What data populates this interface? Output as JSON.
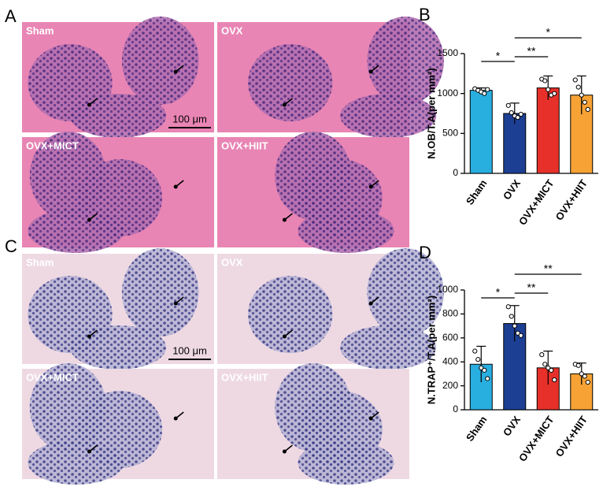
{
  "panels": {
    "A": {
      "label": "A",
      "images": [
        "Sham",
        "OVX",
        "OVX+MICT",
        "OVX+HIIT"
      ],
      "scale_bar": "100 μm"
    },
    "B": {
      "label": "B"
    },
    "C": {
      "label": "C",
      "images": [
        "Sham",
        "OVX",
        "OVX+MICT",
        "OVX+HIIT"
      ],
      "scale_bar": "100 μm"
    },
    "D": {
      "label": "D"
    }
  },
  "chart_data": [
    {
      "type": "bar",
      "ylabel": "N.OB/T.A(per mm²)",
      "categories": [
        "Sham",
        "OVX",
        "OVX+MICT",
        "OVX+HIIT"
      ],
      "values": [
        1040,
        750,
        1070,
        980
      ],
      "errors": [
        30,
        130,
        150,
        240
      ],
      "points": [
        [
          1060,
          1040,
          1020,
          1000,
          1050
        ],
        [
          850,
          760,
          720,
          700,
          740
        ],
        [
          1180,
          1160,
          1050,
          980,
          1000
        ],
        [
          1170,
          1080,
          980,
          890,
          800
        ]
      ],
      "colors": [
        "#29aee0",
        "#1c3f94",
        "#e8302a",
        "#f6a234"
      ],
      "ylim": [
        0,
        1500
      ],
      "yticks": [
        0,
        500,
        1000,
        1500
      ],
      "significance": [
        {
          "pair": [
            "Sham",
            "OVX"
          ],
          "label": "*"
        },
        {
          "pair": [
            "OVX",
            "OVX+MICT"
          ],
          "label": "**"
        },
        {
          "pair": [
            "OVX",
            "OVX+HIIT"
          ],
          "label": "*"
        }
      ]
    },
    {
      "type": "bar",
      "ylabel": "N.TRAP⁺/T.A(per mm²)",
      "categories": [
        "Sham",
        "OVX",
        "OVX+MICT",
        "OVX+HIIT"
      ],
      "values": [
        380,
        720,
        350,
        300
      ],
      "errors": [
        150,
        150,
        140,
        90
      ],
      "points": [
        [
          490,
          420,
          350,
          330,
          260
        ],
        [
          860,
          780,
          700,
          640,
          620
        ],
        [
          460,
          380,
          350,
          330,
          250
        ],
        [
          380,
          370,
          300,
          280,
          230
        ]
      ],
      "colors": [
        "#29aee0",
        "#1c3f94",
        "#e8302a",
        "#f6a234"
      ],
      "ylim": [
        0,
        1000
      ],
      "yticks": [
        0,
        200,
        400,
        600,
        800,
        1000
      ],
      "significance": [
        {
          "pair": [
            "Sham",
            "OVX"
          ],
          "label": "*"
        },
        {
          "pair": [
            "OVX",
            "OVX+MICT"
          ],
          "label": "**"
        },
        {
          "pair": [
            "OVX",
            "OVX+HIIT"
          ],
          "label": "**"
        }
      ]
    }
  ]
}
